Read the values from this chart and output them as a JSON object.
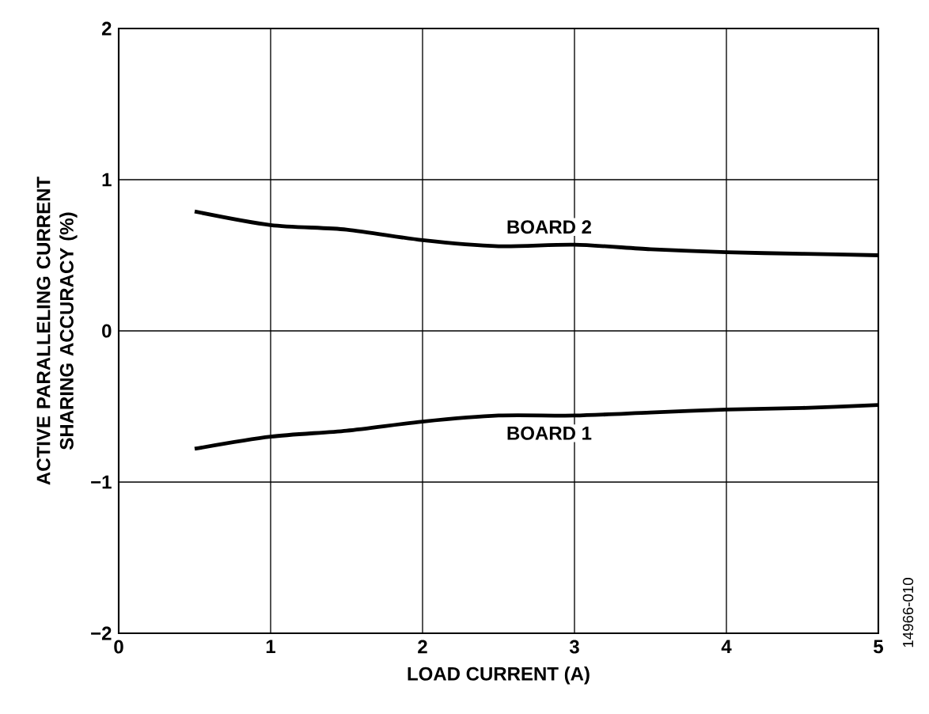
{
  "chart_data": {
    "type": "line",
    "xlabel": "LOAD CURRENT (A)",
    "ylabel": "ACTIVE PARALLELING CURRENT SHARING ACCURACY (%)",
    "x": [
      0.5,
      1.0,
      1.5,
      2.0,
      2.5,
      3.0,
      3.5,
      4.0,
      4.5,
      5.0
    ],
    "series": [
      {
        "name": "BOARD 2",
        "color": "#000000",
        "values": [
          0.79,
          0.7,
          0.67,
          0.6,
          0.56,
          0.57,
          0.54,
          0.52,
          0.51,
          0.5
        ]
      },
      {
        "name": "BOARD 1",
        "color": "#000000",
        "values": [
          -0.78,
          -0.7,
          -0.66,
          -0.6,
          -0.56,
          -0.56,
          -0.54,
          -0.52,
          -0.51,
          -0.49
        ]
      }
    ],
    "xlim": [
      0,
      5
    ],
    "ylim": [
      -2,
      2
    ],
    "xticks": [
      0,
      1,
      2,
      3,
      4,
      5
    ],
    "yticks": [
      {
        "value": -2,
        "label": "−2"
      },
      {
        "value": -1,
        "label": "−1"
      },
      0,
      1,
      2
    ],
    "grid": true,
    "marker": "none",
    "line_style": "solid",
    "annotations": [
      "14966-010"
    ]
  }
}
